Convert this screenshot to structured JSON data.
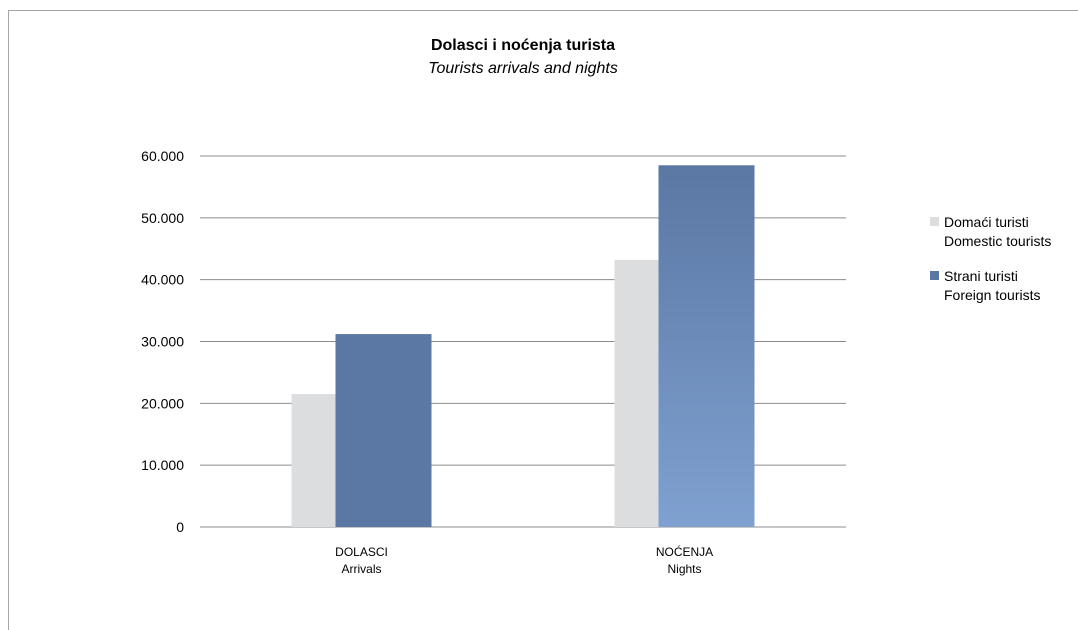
{
  "chart_data": {
    "type": "bar",
    "title": "Dolasci i noćenja turista",
    "subtitle": "Tourists arrivals and nights",
    "categories": [
      [
        "DOLASCI",
        "Arrivals"
      ],
      [
        "NOĆENJA",
        "Nights"
      ]
    ],
    "series": [
      {
        "name": [
          "Domaći turisti",
          "Domestic tourists"
        ],
        "values": [
          21500,
          43200
        ],
        "color": "#dcdddf"
      },
      {
        "name": [
          "Strani turisti",
          "Foreign tourists"
        ],
        "values": [
          31200,
          58500
        ],
        "color": "#5b77a3"
      }
    ],
    "ylim": [
      0,
      60000
    ],
    "yticks": [
      "0",
      "10.000",
      "20.000",
      "30.000",
      "40.000",
      "50.000",
      "60.000"
    ],
    "grid": true,
    "legend_position": "right"
  },
  "colors": {
    "grid": "#8c8c8c",
    "foreign_gradient_top": "#5b77a3",
    "foreign_gradient_bottom": "#7fa1d1"
  }
}
